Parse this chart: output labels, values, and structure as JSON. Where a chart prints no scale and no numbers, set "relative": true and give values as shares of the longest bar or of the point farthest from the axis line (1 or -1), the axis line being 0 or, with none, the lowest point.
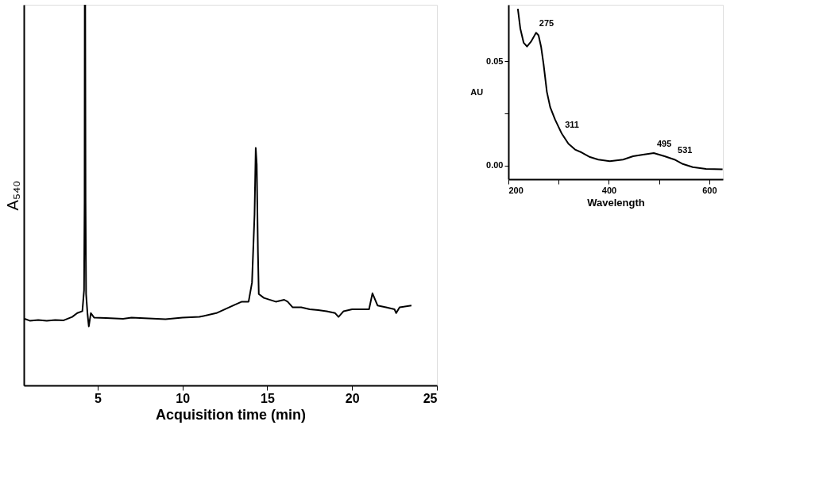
{
  "chart_data": [
    {
      "type": "line",
      "relative": true,
      "xlabel": "Acquisition time (min)",
      "ylabel": "A₅₄₀",
      "grid": false,
      "xlim": [
        0.65,
        25
      ],
      "xticks": [
        5,
        10,
        15,
        20,
        25
      ],
      "x": [
        0.7,
        1.0,
        1.5,
        2.0,
        2.5,
        3.0,
        3.5,
        3.8,
        4.1,
        4.2,
        4.23,
        4.24,
        4.27,
        4.29,
        4.32,
        4.4,
        4.48,
        4.6,
        4.8,
        5.5,
        6.5,
        7,
        8,
        9,
        10,
        11,
        12,
        13,
        13.5,
        13.9,
        14.1,
        14.25,
        14.32,
        14.38,
        14.45,
        14.5,
        14.8,
        15.5,
        16,
        16.2,
        16.5,
        17,
        17.5,
        18,
        18.5,
        19,
        19.2,
        19.5,
        20,
        20.5,
        21,
        21.2,
        21.5,
        22,
        22.5,
        22.6,
        22.8,
        23.5
      ],
      "series": [
        {
          "color": "#000000",
          "values": [
            0.175,
            0.17,
            0.172,
            0.17,
            0.172,
            0.171,
            0.18,
            0.19,
            0.195,
            0.25,
            0.48,
            1.0,
            1.0,
            0.48,
            0.24,
            0.19,
            0.155,
            0.19,
            0.178,
            0.177,
            0.175,
            0.178,
            0.176,
            0.174,
            0.178,
            0.18,
            0.19,
            0.21,
            0.22,
            0.22,
            0.27,
            0.45,
            0.624,
            0.58,
            0.35,
            0.24,
            0.23,
            0.22,
            0.225,
            0.22,
            0.205,
            0.205,
            0.2,
            0.198,
            0.195,
            0.19,
            0.18,
            0.195,
            0.2,
            0.2,
            0.2,
            0.242,
            0.21,
            0.205,
            0.2,
            0.19,
            0.205,
            0.21
          ]
        }
      ]
    },
    {
      "type": "line",
      "xlabel": "Wavelength",
      "ylabel": "AU",
      "grid": false,
      "xlim": [
        200,
        627
      ],
      "xticks": [
        200,
        {
          "value": 300,
          "label": null
        },
        400,
        {
          "value": 500,
          "label": null
        },
        600
      ],
      "ylim": [
        -0.0065,
        0.077
      ],
      "yticks": [
        {
          "value": 0,
          "label": "0.00"
        },
        {
          "value": 0.025,
          "label": null
        },
        {
          "value": 0.05,
          "label": "0.05"
        }
      ],
      "x": [
        218.8,
        223.8,
        230.4,
        237,
        245.2,
        255.1,
        260,
        265,
        270,
        276.6,
        283.2,
        293,
        306.3,
        319.5,
        332.7,
        345.9,
        362.4,
        378.9,
        402,
        428.4,
        448.2,
        468,
        489.4,
        510.9,
        530.7,
        547.2,
        567,
        593.4,
        626.4
      ],
      "series": [
        {
          "color": "#000000",
          "values": [
            0.0751,
            0.0655,
            0.0588,
            0.057,
            0.0594,
            0.0636,
            0.0624,
            0.057,
            0.0486,
            0.0353,
            0.028,
            0.022,
            0.0153,
            0.0105,
            0.0077,
            0.0063,
            0.0041,
            0.0029,
            0.0021,
            0.0029,
            0.0045,
            0.0053,
            0.006,
            0.0045,
            0.0029,
            0.0008,
            -0.0007,
            -0.0016,
            -0.0018
          ]
        }
      ],
      "annotations": [
        {
          "text": "275",
          "x": 255.1,
          "y": 0.0636
        },
        {
          "text": "311",
          "x": 306.3,
          "y": 0.0153
        },
        {
          "text": "495",
          "x": 489.4,
          "y": 0.006
        },
        {
          "text": "531",
          "x": 530.7,
          "y": 0.0029
        }
      ]
    }
  ]
}
